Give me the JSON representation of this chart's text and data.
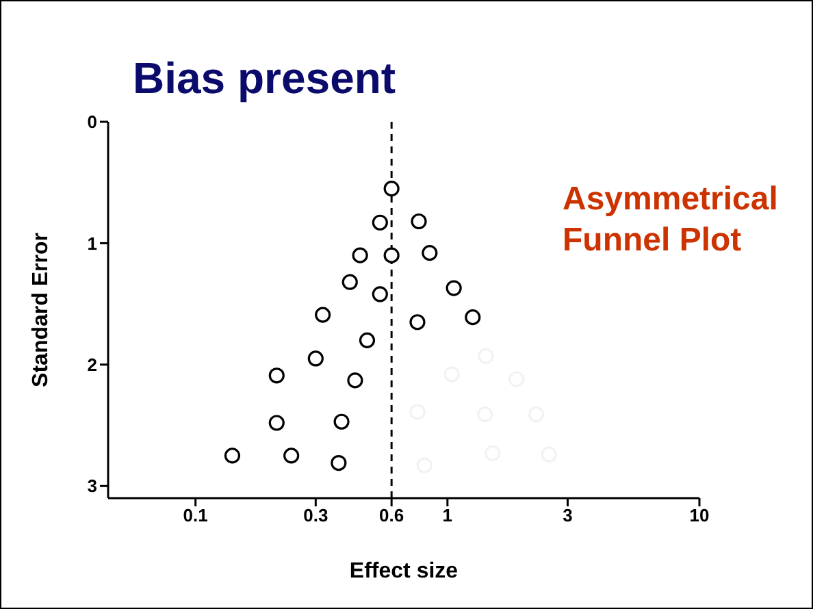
{
  "chart_data": {
    "type": "scatter",
    "title": "Bias present",
    "xlabel": "Effect size",
    "ylabel": "Standard Error",
    "annotations": [
      "Asymmetrical Funnel Plot"
    ],
    "log": "x",
    "xlim": [
      0.045,
      10
    ],
    "xticks": [
      0.1,
      0.3,
      0.6,
      1,
      3,
      10
    ],
    "ylim": [
      3.1,
      0
    ],
    "yticks": [
      0,
      1,
      2,
      3
    ],
    "grid": false,
    "legend": false,
    "marker": "circle",
    "ref_lines": [
      {
        "axis": "x",
        "value": 0.6,
        "line_style": "dashed",
        "color": "#000000"
      }
    ],
    "series": [
      {
        "color": "#000000",
        "x": [
          0.6,
          0.54,
          0.77,
          0.45,
          0.6,
          0.85,
          0.41,
          0.54,
          1.06,
          0.32,
          0.76,
          1.26,
          0.48,
          0.3,
          0.21,
          0.43,
          0.21,
          0.38,
          0.14,
          0.24,
          0.37
        ],
        "values": [
          0.55,
          0.83,
          0.82,
          1.1,
          1.1,
          1.08,
          1.32,
          1.42,
          1.37,
          1.59,
          1.65,
          1.61,
          1.8,
          1.95,
          2.09,
          2.13,
          2.48,
          2.47,
          2.75,
          2.75,
          2.81
        ]
      },
      {
        "color": "#f2f2f2",
        "x": [
          1.42,
          1.04,
          1.88,
          0.76,
          1.41,
          2.25,
          1.51,
          2.53,
          0.81
        ],
        "values": [
          1.93,
          2.08,
          2.12,
          2.39,
          2.41,
          2.41,
          2.73,
          2.74,
          2.83
        ]
      }
    ]
  }
}
